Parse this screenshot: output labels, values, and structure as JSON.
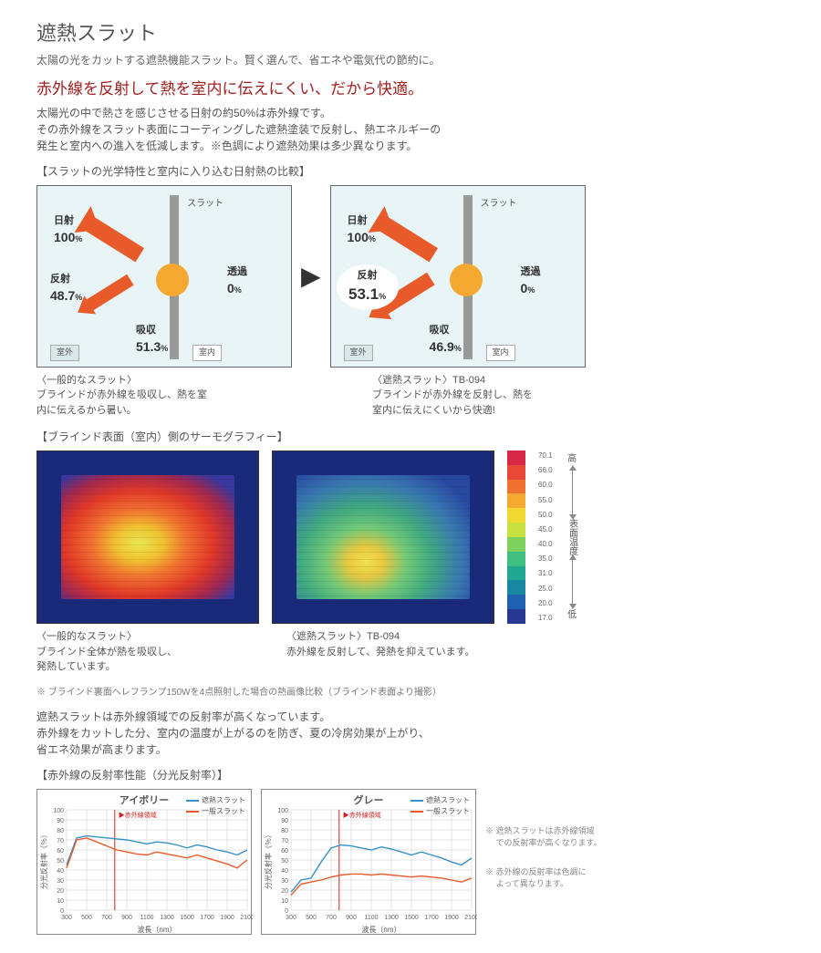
{
  "header": {
    "title": "遮熱スラット",
    "subtitle": "太陽の光をカットする遮熱機能スラット。賢く選んで、省エネや電気代の節約に。",
    "headline": "赤外線を反射して熱を室内に伝えにくい、だから快適。",
    "body": "太陽光の中で熱さを感じさせる日射の約50%は赤外線です。\nその赤外線をスラット表面にコーティングした遮熱塗装で反射し、熱エネルギーの\n発生と室内への進入を低減します。※色調により遮熱効果は多少異なります。"
  },
  "diagram_section": {
    "label": "【スラットの光学特性と室内に入り込む日射熱の比較】",
    "slat_label": "スラット",
    "labels": {
      "incident": "日射",
      "reflection": "反射",
      "absorption": "吸収",
      "transmission": "透過",
      "outside": "室外",
      "inside": "室内"
    },
    "colors": {
      "diagram_bg": "#e8f4f6",
      "arrow": "#e85a2a",
      "sun": "#f4a830",
      "slat": "#999999",
      "highlight_bg": "#ffffff"
    },
    "left": {
      "caption_title": "〈一般的なスラット〉",
      "caption_body": "ブラインドが赤外線を吸収し、熱を室\n内に伝えるから暑い。",
      "incident_pct": "100",
      "reflection_pct": "48.7",
      "absorption_pct": "51.3",
      "transmission_pct": "0",
      "highlight": false
    },
    "right": {
      "caption_title": "〈遮熱スラット〉TB-094",
      "caption_body": "ブラインドが赤外線を反射し、熱を\n室内に伝えにくいから快適!",
      "incident_pct": "100",
      "reflection_pct": "53.1",
      "absorption_pct": "46.9",
      "transmission_pct": "0",
      "highlight": true
    }
  },
  "thermo_section": {
    "label": "【ブラインド表面（室内）側のサーモグラフィー】",
    "left": {
      "caption_title": "〈一般的なスラット〉",
      "caption_body": "ブラインド全体が熱を吸収し、\n発熱しています。",
      "gradient": "radial-gradient(ellipse at 45% 55%, #e8e850 0%, #f0c030 18%, #f07030 35%, #e03828 55%, #a02850 72%, #3838a0 88%)"
    },
    "right": {
      "caption_title": "〈遮熱スラット〉TB-094",
      "caption_body": "赤外線を反射して、発熱を抑えています。",
      "gradient": "radial-gradient(ellipse at 40% 70%, #f0e050 0%, #e8c840 12%, #70c878 28%, #40a880 45%, #3878b0 65%, #2848a0 85%)"
    },
    "note": "※ ブラインド裏面へレフランプ150Wを4点照射した場合の熱画像比較（ブラインド表面より撮影）",
    "scale": {
      "high_label": "高",
      "low_label": "低",
      "axis_label": "表面温度",
      "values": [
        "70.1",
        "66.0",
        "60.0",
        "55.0",
        "50.0",
        "45.0",
        "40.0",
        "35.0",
        "31.0",
        "25.0",
        "20.0",
        "17.0"
      ],
      "colors": [
        "#d82848",
        "#e84838",
        "#f07030",
        "#f4a830",
        "#f0d830",
        "#c8e040",
        "#80d060",
        "#40c080",
        "#20a890",
        "#1888a0",
        "#2060b0",
        "#283890"
      ]
    }
  },
  "summary": {
    "body": "遮熱スラットは赤外線領域での反射率が高くなっています。\n赤外線をカットした分、室内の温度が上がるのを防ぎ、夏の冷房効果が上がり、\n省エネ効果が高まります。"
  },
  "chart_section": {
    "label": "【赤外線の反射率性能（分光反射率）】",
    "y_label": "分光反射率（％）",
    "x_label": "波長（nm）",
    "y_ticks": [
      0,
      10,
      20,
      30,
      40,
      50,
      60,
      70,
      80,
      90,
      100
    ],
    "x_ticks": [
      300,
      500,
      700,
      900,
      1100,
      1300,
      1500,
      1700,
      1900,
      2100
    ],
    "ir_boundary_x": 780,
    "ir_label": "赤外線領域",
    "legend": {
      "heat": "遮熱スラット",
      "normal": "一般スラット"
    },
    "colors": {
      "heat": "#3890c8",
      "normal": "#e85a2a",
      "ir_line": "#d82020",
      "grid": "#cccccc"
    },
    "charts": [
      {
        "title": "アイボリー",
        "heat_y": [
          45,
          72,
          74,
          73,
          72,
          71,
          70,
          68,
          66,
          68,
          67,
          65,
          62,
          65,
          63,
          60,
          58,
          55,
          60
        ],
        "normal_y": [
          42,
          70,
          72,
          68,
          64,
          60,
          58,
          56,
          55,
          58,
          56,
          54,
          52,
          55,
          52,
          49,
          46,
          42,
          50
        ]
      },
      {
        "title": "グレー",
        "heat_y": [
          18,
          30,
          32,
          48,
          62,
          65,
          64,
          62,
          60,
          63,
          61,
          58,
          55,
          58,
          55,
          52,
          48,
          45,
          52
        ],
        "normal_y": [
          15,
          26,
          28,
          30,
          33,
          35,
          36,
          36,
          35,
          36,
          35,
          34,
          33,
          34,
          33,
          32,
          30,
          28,
          32
        ]
      }
    ],
    "notes": [
      "※ 遮熱スラットは赤外線領域\n　 での反射率が高くなります。",
      "※ 赤外線の反射率は色調に\n　 よって異なります。"
    ]
  }
}
